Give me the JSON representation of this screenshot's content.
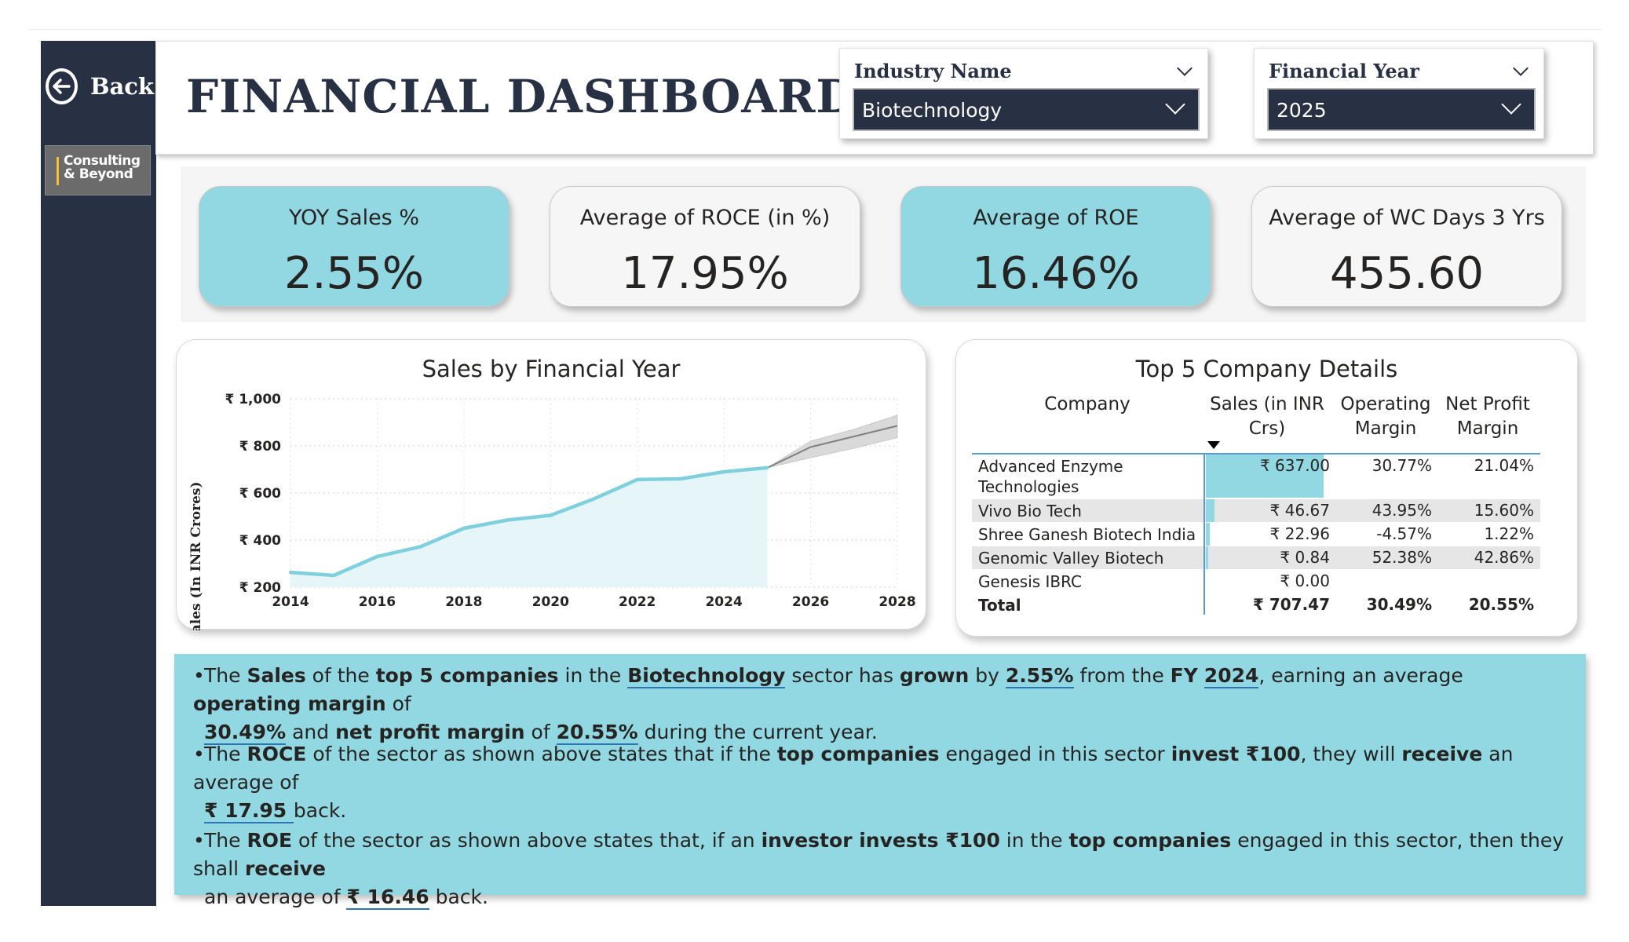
{
  "sidebar": {
    "back_label": "Back",
    "logo_line1": "Consulting",
    "logo_line2": "& Beyond"
  },
  "header": {
    "title": "FINANCIAL DASHBOARD",
    "industry_slicer": {
      "label": "Industry Name",
      "value": "Biotechnology"
    },
    "year_slicer": {
      "label": "Financial Year",
      "value": "2025"
    }
  },
  "kpis": [
    {
      "label": "YOY Sales %",
      "value": "2.55%"
    },
    {
      "label": "Average of ROCE (in %)",
      "value": "17.95%"
    },
    {
      "label": "Average of ROE",
      "value": "16.46%"
    },
    {
      "label": "Average of WC Days 3 Yrs",
      "value": "455.60"
    }
  ],
  "colors": {
    "accent": "#92d8e2",
    "sidebar": "#283044",
    "line": "#7fd0dc",
    "area": "#e6f5f7",
    "forecast": "#808080"
  },
  "chart_data": {
    "type": "line",
    "title": "Sales by Financial Year",
    "ylabel": "Sales (In INR Crores)",
    "xlabel": "",
    "x": [
      2014,
      2015,
      2016,
      2017,
      2018,
      2019,
      2020,
      2021,
      2022,
      2023,
      2024,
      2025
    ],
    "values": [
      263,
      250,
      330,
      372,
      450,
      485,
      505,
      575,
      657,
      660,
      690,
      707
    ],
    "forecast": {
      "x": [
        2025,
        2026,
        2027,
        2028
      ],
      "values": [
        707,
        795,
        840,
        885
      ],
      "lower": [
        707,
        750,
        790,
        835
      ],
      "upper": [
        707,
        820,
        870,
        930
      ]
    },
    "ylim": [
      200,
      1000
    ],
    "xlim": [
      2014,
      2028
    ],
    "yticks": [
      "₹ 1,000",
      "₹ 800",
      "₹ 600",
      "₹ 400",
      "₹ 200"
    ],
    "ytick_values": [
      1000,
      800,
      600,
      400,
      200
    ],
    "xticks": [
      "2014",
      "2016",
      "2018",
      "2020",
      "2022",
      "2024",
      "2026",
      "2028"
    ],
    "xtick_values": [
      2014,
      2016,
      2018,
      2020,
      2022,
      2024,
      2026,
      2028
    ],
    "grid": true
  },
  "table": {
    "title": "Top 5 Company Details",
    "headers": {
      "company": "Company",
      "sales_1": "Sales (in INR",
      "sales_2": "Crs)",
      "om_1": "Operating",
      "om_2": "Margin",
      "npm_1": "Net Profit",
      "npm_2": "Margin"
    },
    "rows": [
      {
        "company_1": "Advanced Enzyme",
        "company_2": "Technologies",
        "sales": "₹ 637.00",
        "sales_value": 637.0,
        "om": "30.77%",
        "npm": "21.04%"
      },
      {
        "company_1": "Vivo Bio Tech",
        "company_2": "",
        "sales": "₹ 46.67",
        "sales_value": 46.67,
        "om": "43.95%",
        "npm": "15.60%"
      },
      {
        "company_1": "Shree Ganesh Biotech India",
        "company_2": "",
        "sales": "₹ 22.96",
        "sales_value": 22.96,
        "om": "-4.57%",
        "npm": "1.22%"
      },
      {
        "company_1": "Genomic Valley Biotech",
        "company_2": "",
        "sales": "₹ 0.84",
        "sales_value": 0.84,
        "om": "52.38%",
        "npm": "42.86%"
      },
      {
        "company_1": "Genesis IBRC",
        "company_2": "",
        "sales": "₹ 0.00",
        "sales_value": 0.0,
        "om": "",
        "npm": ""
      }
    ],
    "total": {
      "label": "Total",
      "sales": "₹ 707.47",
      "om": "30.49%",
      "npm": "20.55%"
    }
  },
  "insights": {
    "p1": {
      "t1": "The ",
      "b1": "Sales",
      "t2": " of the ",
      "b2": "top 5 companies",
      "t3": " in the ",
      "u1": "Biotechnology",
      "t4": " sector has ",
      "b3": "grown",
      "t5": " by ",
      "u2": "2.55%",
      "t6": " from the ",
      "b4": "FY",
      "t7": " ",
      "u3": "2024",
      "t8": ", earning an average ",
      "b5": "operating margin",
      "t9": " of",
      "u4": "30.49%",
      "t10": " and ",
      "b6": "net profit margin",
      "t11": " of ",
      "u5": "20.55%",
      "t12": " during the current year."
    },
    "p2": {
      "t1": "The ",
      "b1": "ROCE",
      "t2": " of the sector as shown above states that if the ",
      "b2": "top companies",
      "t3": " engaged in this sector  ",
      "b3": "invest ₹100",
      "t4": ", they will ",
      "b4": "receive",
      "t5": " an average of",
      "u1": "₹ 17.95 ",
      "t6": " back."
    },
    "p3": {
      "t1": "The ",
      "b1": "ROE",
      "t2": " of the sector as shown above states that, if an ",
      "b2": "investor invests ₹100",
      "t3": " in the ",
      "b3": "top companies",
      "t4": " engaged in this sector, then they shall ",
      "b4": "receive",
      "t5": "an average of ",
      "u1": "₹ 16.46",
      "t6": " back."
    }
  }
}
